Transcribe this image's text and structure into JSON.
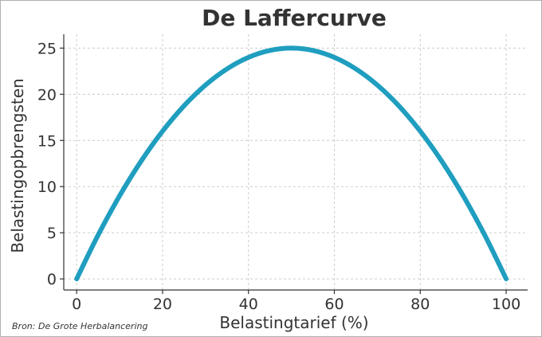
{
  "source": "Bron: De Grote Herbalancering",
  "chart_data": {
    "type": "line",
    "title": "De Laffercurve",
    "xlabel": "Belastingtarief (%)",
    "ylabel": "Belastingopbrengsten",
    "xlim": [
      -3,
      105
    ],
    "ylim": [
      -1.2,
      26.5
    ],
    "xticks": [
      0,
      20,
      40,
      60,
      80,
      100
    ],
    "yticks": [
      0,
      5,
      10,
      15,
      20,
      25
    ],
    "grid": true,
    "legend": "none",
    "series_color": "#1f9ebf",
    "x": [
      0,
      5,
      10,
      15,
      20,
      25,
      30,
      35,
      40,
      45,
      50,
      55,
      60,
      65,
      70,
      75,
      80,
      85,
      90,
      95,
      100
    ],
    "y": [
      0,
      4.75,
      9,
      12.75,
      16,
      18.75,
      21,
      22.75,
      24,
      24.75,
      25,
      24.75,
      24,
      22.75,
      21,
      18.75,
      16,
      12.75,
      9,
      4.75,
      0
    ]
  }
}
